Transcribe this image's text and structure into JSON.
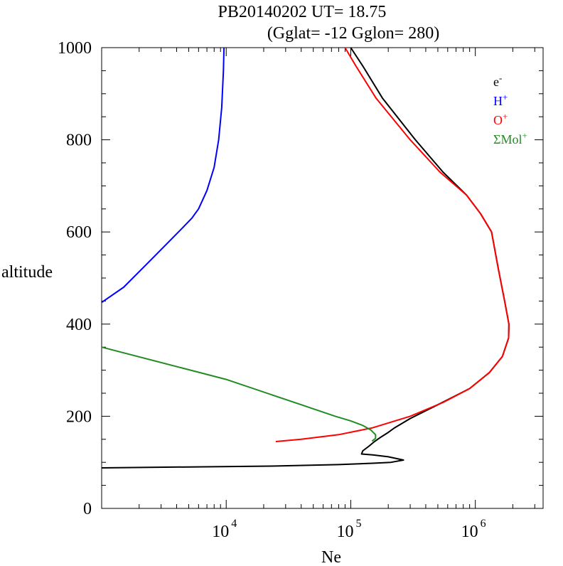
{
  "chart_data": {
    "type": "line",
    "title": "PB20140202   UT=  18.75",
    "subtitle": "(Gglat= -12   Gglon=  280)",
    "xlabel": "Ne",
    "ylabel": "altitude",
    "x_scale": "log",
    "xlim": [
      1000,
      3500000
    ],
    "ylim": [
      0,
      1000
    ],
    "x_tick_labels": [
      {
        "value": 10000,
        "base": "10",
        "exp": "4"
      },
      {
        "value": 100000,
        "base": "10",
        "exp": "5"
      },
      {
        "value": 1000000,
        "base": "10",
        "exp": "6"
      }
    ],
    "y_ticks": [
      0,
      200,
      400,
      600,
      800,
      1000
    ],
    "grid": false,
    "legend_position": "top-right",
    "series": [
      {
        "name": "e-",
        "legend_base": "e",
        "legend_sup": "-",
        "color": "#000000",
        "points": [
          [
            1000,
            88
          ],
          [
            5000,
            90
          ],
          [
            25000,
            92
          ],
          [
            80000,
            95
          ],
          [
            150000,
            98
          ],
          [
            210000,
            100
          ],
          [
            265000,
            105
          ],
          [
            200000,
            112
          ],
          [
            150000,
            116
          ],
          [
            122000,
            118
          ],
          [
            125000,
            125
          ],
          [
            140000,
            135
          ],
          [
            155000,
            145
          ],
          [
            175000,
            155
          ],
          [
            200000,
            165
          ],
          [
            225000,
            175
          ],
          [
            300000,
            195
          ],
          [
            500000,
            225
          ],
          [
            900000,
            260
          ],
          [
            1300000,
            295
          ],
          [
            1650000,
            330
          ],
          [
            1850000,
            370
          ],
          [
            1860000,
            400
          ],
          [
            1720000,
            450
          ],
          [
            1530000,
            520
          ],
          [
            1350000,
            600
          ],
          [
            1100000,
            640
          ],
          [
            850000,
            680
          ],
          [
            550000,
            730
          ],
          [
            330000,
            800
          ],
          [
            180000,
            890
          ],
          [
            125000,
            960
          ],
          [
            100000,
            1000
          ]
        ]
      },
      {
        "name": "H+",
        "legend_base": "H",
        "legend_sup": "+",
        "color": "#0000ff",
        "points": [
          [
            1000,
            447
          ],
          [
            1500,
            480
          ],
          [
            2500,
            540
          ],
          [
            3500,
            580
          ],
          [
            4500,
            610
          ],
          [
            5300,
            630
          ],
          [
            6000,
            650
          ],
          [
            7000,
            690
          ],
          [
            8000,
            740
          ],
          [
            8700,
            800
          ],
          [
            9200,
            870
          ],
          [
            9500,
            950
          ],
          [
            9600,
            1000
          ]
        ]
      },
      {
        "name": "O+",
        "legend_base": "O",
        "legend_sup": "+",
        "color": "#ff0000",
        "points": [
          [
            25000,
            145
          ],
          [
            40000,
            150
          ],
          [
            80000,
            160
          ],
          [
            150000,
            175
          ],
          [
            300000,
            200
          ],
          [
            550000,
            230
          ],
          [
            900000,
            260
          ],
          [
            1300000,
            295
          ],
          [
            1650000,
            330
          ],
          [
            1850000,
            370
          ],
          [
            1860000,
            400
          ],
          [
            1720000,
            450
          ],
          [
            1530000,
            520
          ],
          [
            1350000,
            600
          ],
          [
            1100000,
            640
          ],
          [
            850000,
            680
          ],
          [
            520000,
            730
          ],
          [
            300000,
            800
          ],
          [
            160000,
            890
          ],
          [
            110000,
            960
          ],
          [
            90000,
            1000
          ]
        ]
      },
      {
        "name": "ΣMol+",
        "legend_base": "ΣMol",
        "legend_sup": "+",
        "color": "#228b22",
        "points": [
          [
            1000,
            350
          ],
          [
            10000,
            280
          ],
          [
            40000,
            225
          ],
          [
            75000,
            200
          ],
          [
            100000,
            190
          ],
          [
            125000,
            180
          ],
          [
            145000,
            170
          ],
          [
            158000,
            160
          ],
          [
            158000,
            152
          ],
          [
            148000,
            146
          ]
        ]
      }
    ]
  }
}
